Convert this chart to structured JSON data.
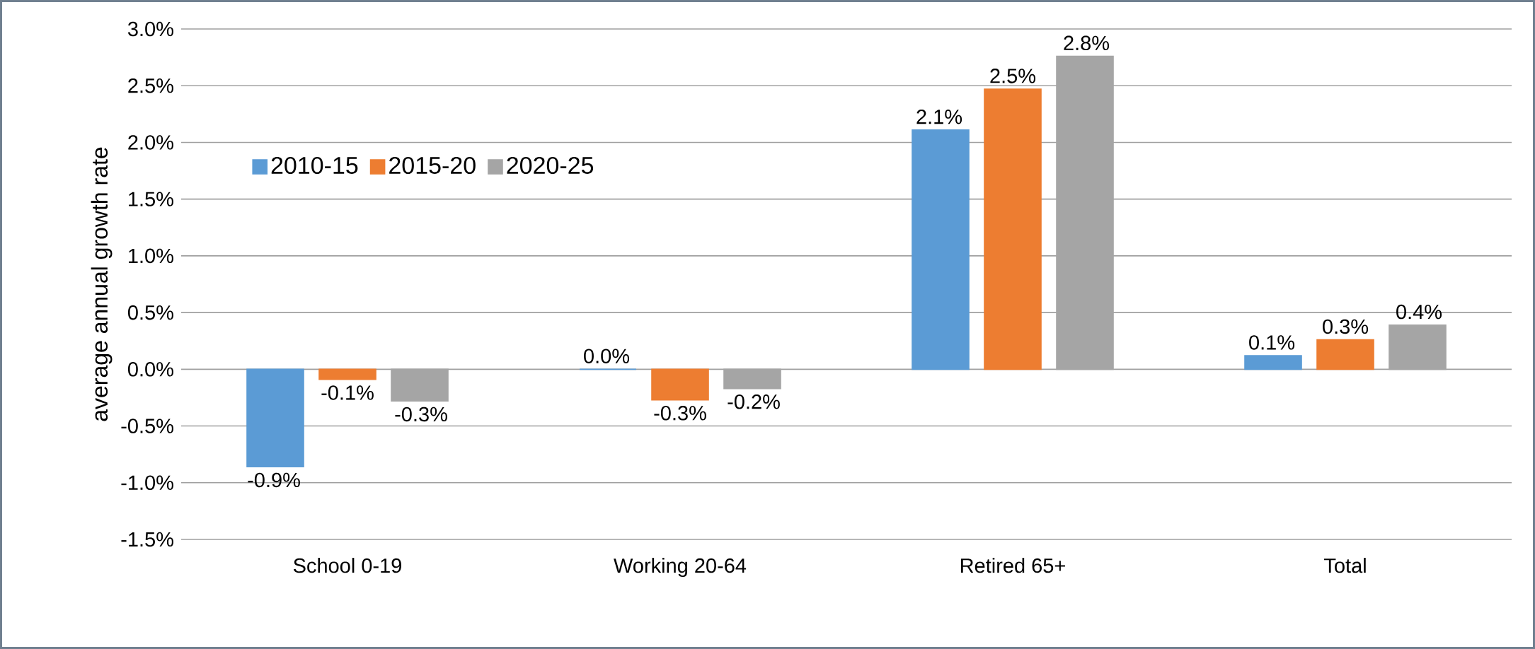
{
  "chart_data": {
    "type": "bar",
    "ylabel": "average annual growth rate",
    "categories": [
      "School 0-19",
      "Working 20-64",
      "Retired 65+",
      "Total"
    ],
    "series": [
      {
        "name": "2010-15",
        "color": "#5b9bd5",
        "values": [
          -0.86,
          0.0,
          2.11,
          0.12
        ],
        "value_labels": [
          "-0.9%",
          "0.0%",
          "2.1%",
          "0.1%"
        ]
      },
      {
        "name": "2015-20",
        "color": "#ed7d31",
        "values": [
          -0.09,
          -0.27,
          2.47,
          0.26
        ],
        "value_labels": [
          "-0.1%",
          "-0.3%",
          "2.5%",
          "0.3%"
        ]
      },
      {
        "name": "2020-25",
        "color": "#a5a5a5",
        "values": [
          -0.28,
          -0.17,
          2.76,
          0.39
        ],
        "value_labels": [
          "-0.3%",
          "-0.2%",
          "2.8%",
          "0.4%"
        ]
      }
    ],
    "ylim": [
      -1.5,
      3.0
    ],
    "yticks": [
      {
        "value": -1.5,
        "label": "-1.5%"
      },
      {
        "value": -1.0,
        "label": "-1.0%"
      },
      {
        "value": -0.5,
        "label": "-0.5%"
      },
      {
        "value": 0,
        "label": "0.0%"
      },
      {
        "value": 0.5,
        "label": "0.5%"
      },
      {
        "value": 1.0,
        "label": "1.0%"
      },
      {
        "value": 1.5,
        "label": "1.5%"
      },
      {
        "value": 2.0,
        "label": "2.0%"
      },
      {
        "value": 2.5,
        "label": "2.5%"
      },
      {
        "value": 3.0,
        "label": "3.0%"
      }
    ],
    "grid": "y",
    "legend": "top left"
  }
}
